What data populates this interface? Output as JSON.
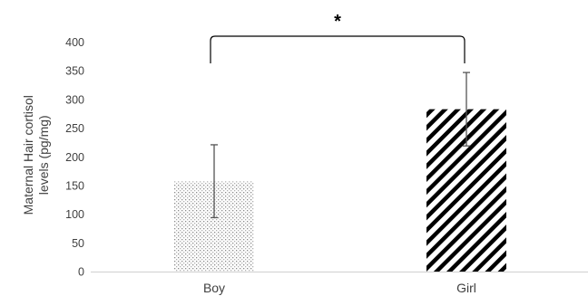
{
  "chart_data": {
    "type": "bar",
    "categories": [
      "Boy",
      "Girl"
    ],
    "values": [
      157,
      283
    ],
    "error_bars": [
      {
        "low": 94,
        "high": 221
      },
      {
        "low": 219,
        "high": 347
      }
    ],
    "bar_patterns": [
      "dotted",
      "diagonal-stripes"
    ],
    "ylabel_lines": [
      "Maternal Hair cortisol",
      "levels (pg/mg)"
    ],
    "ylim": [
      0,
      400
    ],
    "yticks": [
      0,
      50,
      100,
      150,
      200,
      250,
      300,
      350,
      400
    ],
    "grid": false,
    "annotation": {
      "text": "*",
      "from": "Boy",
      "to": "Girl"
    }
  }
}
